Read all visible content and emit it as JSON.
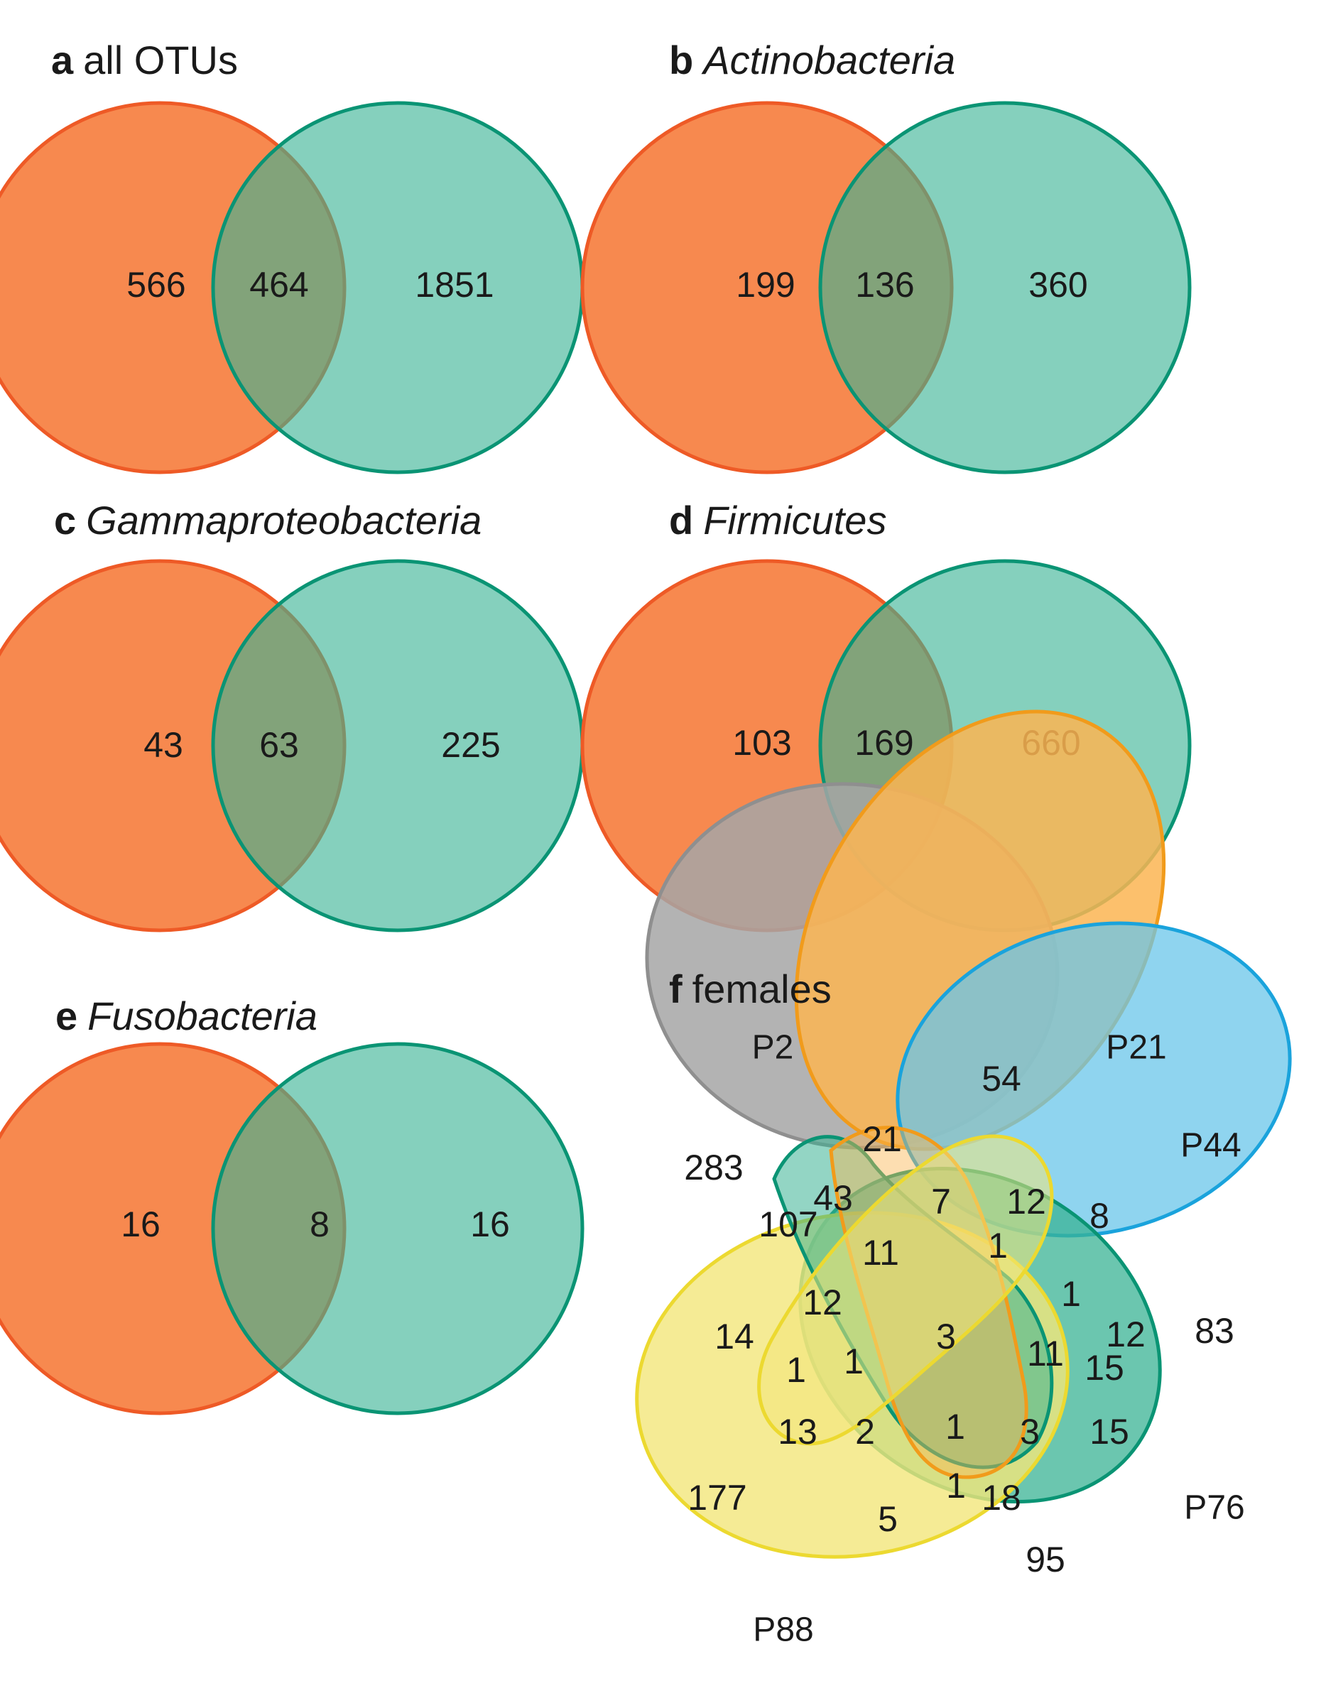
{
  "colors": {
    "orange": "#f7894f",
    "orange_stroke": "#ee5a26",
    "teal": "#3ab394",
    "teal_stroke": "#0a9474",
    "gray": "#a6a6a6",
    "yellow": "#f3e67a",
    "gold": "#fbb552",
    "blue": "#6ac6ea"
  },
  "panels": [
    {
      "letter": "a",
      "title": "all OTUs",
      "italic": false,
      "left_only": "566",
      "both": "464",
      "right_only": "1851"
    },
    {
      "letter": "b",
      "title": "Actinobacteria",
      "italic": true,
      "left_only": "199",
      "both": "136",
      "right_only": "360"
    },
    {
      "letter": "c",
      "title": "Gammaproteobacteria",
      "italic": true,
      "left_only": "43",
      "both": "63",
      "right_only": "225"
    },
    {
      "letter": "d",
      "title": "Firmicutes",
      "italic": true,
      "left_only": "103",
      "both": "169",
      "right_only": "660"
    },
    {
      "letter": "e",
      "title": "Fusobacteria",
      "italic": true,
      "left_only": "16",
      "both": "8",
      "right_only": "16"
    }
  ],
  "panel_f": {
    "letter": "f",
    "title": "females",
    "sets": {
      "p2": "P2",
      "p21": "P21",
      "p44": "P44",
      "p76": "P76",
      "p88": "P88"
    },
    "regions": {
      "p21_only": "54",
      "p2_p21": "21",
      "p2_only": "283",
      "p2_p21_p76": "43",
      "p2_p76": "107",
      "p21_p88": "7",
      "p21_p44": "12",
      "p44_only_top": "8",
      "p2_p21_p76_p88": "11",
      "p21_p44_p88": "1",
      "p2_p44": "1",
      "p2_p76_p88": "12",
      "p2_p88": "14",
      "all_five": "3",
      "p2_p44_p76_a": "11",
      "p2_p21_p44": "12",
      "p2_p44_p76_b": "15",
      "p44_only": "83",
      "p2_p44_p88": "1",
      "p2_p44_p76_p88": "1",
      "p44_p88": "13",
      "p44_p76_p88": "2",
      "p21_p44_p76_p88": "1",
      "p44_p76": "3",
      "p44_p76_only": "15",
      "p88_only": "177",
      "p21_p76_p88": "1",
      "p21_p76": "18",
      "p76_p88": "5",
      "p76_only": "95"
    }
  }
}
